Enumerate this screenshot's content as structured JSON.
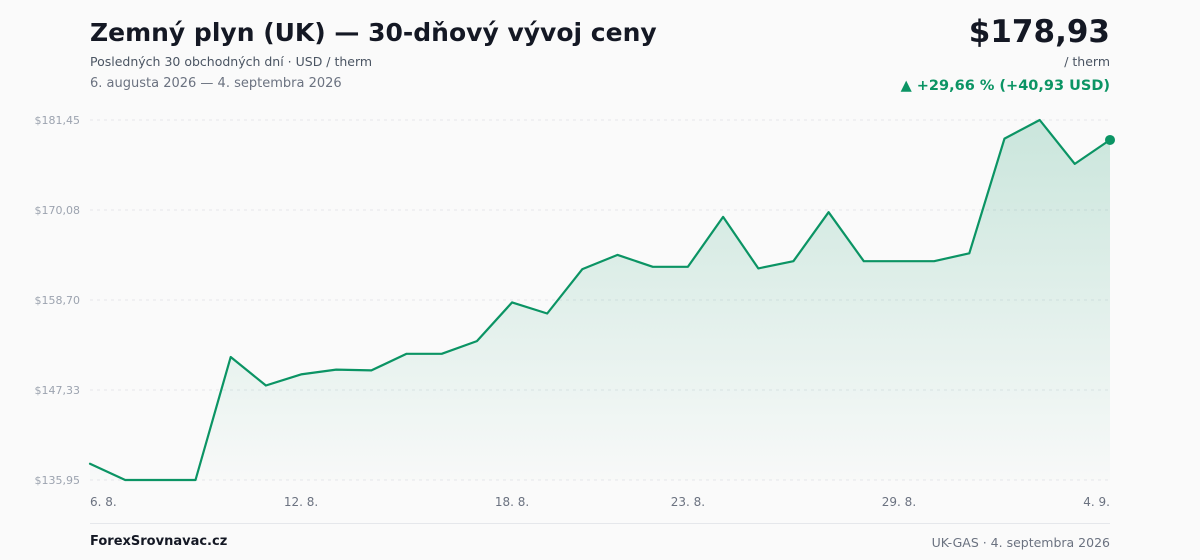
{
  "header": {
    "title": "Zemný plyn (UK) — 30-dňový vývoj ceny",
    "subtitle": "Posledných 30 obchodných dní · USD / therm",
    "date_range": "6. augusta 2026 — 4. septembra 2026",
    "price": "$178,93",
    "unit": "/ therm",
    "change": "▲ +29,66 % (+40,93 USD)"
  },
  "footer": {
    "brand": "ForexSrovnavac.cz",
    "note": "UK-GAS · 4. septembra 2026"
  },
  "colors": {
    "line": "#0b9464",
    "positive": "#0b9464",
    "grid": "#e5e7eb"
  },
  "chart_data": {
    "type": "area",
    "y_ticks": [
      135.95,
      147.33,
      158.7,
      170.08,
      181.45
    ],
    "y_tick_labels": [
      "$135,95",
      "$147,33",
      "$158,70",
      "$170,08",
      "$181,45"
    ],
    "ylim": [
      135.95,
      181.45
    ],
    "x_tick_labels": [
      {
        "index": 0,
        "label": "6. 8."
      },
      {
        "index": 6,
        "label": "12. 8."
      },
      {
        "index": 12,
        "label": "18. 8."
      },
      {
        "index": 17,
        "label": "23. 8."
      },
      {
        "index": 23,
        "label": "29. 8."
      },
      {
        "index": 29,
        "label": "4. 9."
      }
    ],
    "grid": true,
    "values": [
      138.0,
      135.95,
      135.95,
      135.95,
      151.5,
      147.9,
      149.3,
      149.9,
      149.8,
      151.9,
      151.9,
      153.5,
      158.4,
      157.0,
      162.6,
      164.4,
      162.9,
      162.9,
      169.2,
      162.7,
      163.6,
      169.8,
      163.6,
      163.6,
      163.6,
      164.6,
      179.1,
      181.45,
      175.9,
      178.93
    ]
  }
}
